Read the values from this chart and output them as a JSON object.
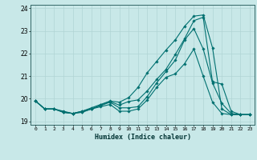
{
  "title": "",
  "xlabel": "Humidex (Indice chaleur)",
  "ylabel": "",
  "background_color": "#c8e8e8",
  "grid_color": "#b0d4d4",
  "line_color": "#007070",
  "xlim": [
    -0.5,
    23.5
  ],
  "ylim": [
    18.85,
    24.15
  ],
  "yticks": [
    19,
    20,
    21,
    22,
    23,
    24
  ],
  "xticks": [
    0,
    1,
    2,
    3,
    4,
    5,
    6,
    7,
    8,
    9,
    10,
    11,
    12,
    13,
    14,
    15,
    16,
    17,
    18,
    19,
    20,
    21,
    22,
    23
  ],
  "series": [
    [
      19.9,
      19.55,
      19.55,
      19.45,
      19.35,
      19.45,
      19.55,
      19.65,
      19.75,
      19.45,
      19.45,
      19.55,
      19.95,
      20.5,
      20.95,
      21.1,
      21.55,
      22.2,
      21.0,
      19.85,
      19.35,
      19.3,
      19.3,
      19.3
    ],
    [
      19.9,
      19.55,
      19.55,
      19.4,
      19.35,
      19.4,
      19.55,
      19.7,
      19.85,
      19.6,
      19.6,
      19.65,
      20.1,
      20.7,
      21.2,
      21.7,
      22.6,
      23.1,
      22.2,
      20.7,
      19.8,
      19.35,
      19.3,
      19.3
    ],
    [
      19.9,
      19.55,
      19.55,
      19.4,
      19.35,
      19.45,
      19.6,
      19.75,
      19.9,
      19.85,
      20.05,
      20.5,
      21.15,
      21.65,
      22.15,
      22.6,
      23.2,
      23.65,
      23.7,
      22.25,
      19.55,
      19.3,
      19.3,
      19.3
    ],
    [
      19.9,
      19.55,
      19.55,
      19.42,
      19.35,
      19.42,
      19.55,
      19.72,
      19.88,
      19.72,
      19.88,
      19.95,
      20.35,
      20.85,
      21.3,
      21.95,
      22.65,
      23.45,
      23.6,
      20.75,
      20.65,
      19.45,
      19.3,
      19.3
    ]
  ]
}
